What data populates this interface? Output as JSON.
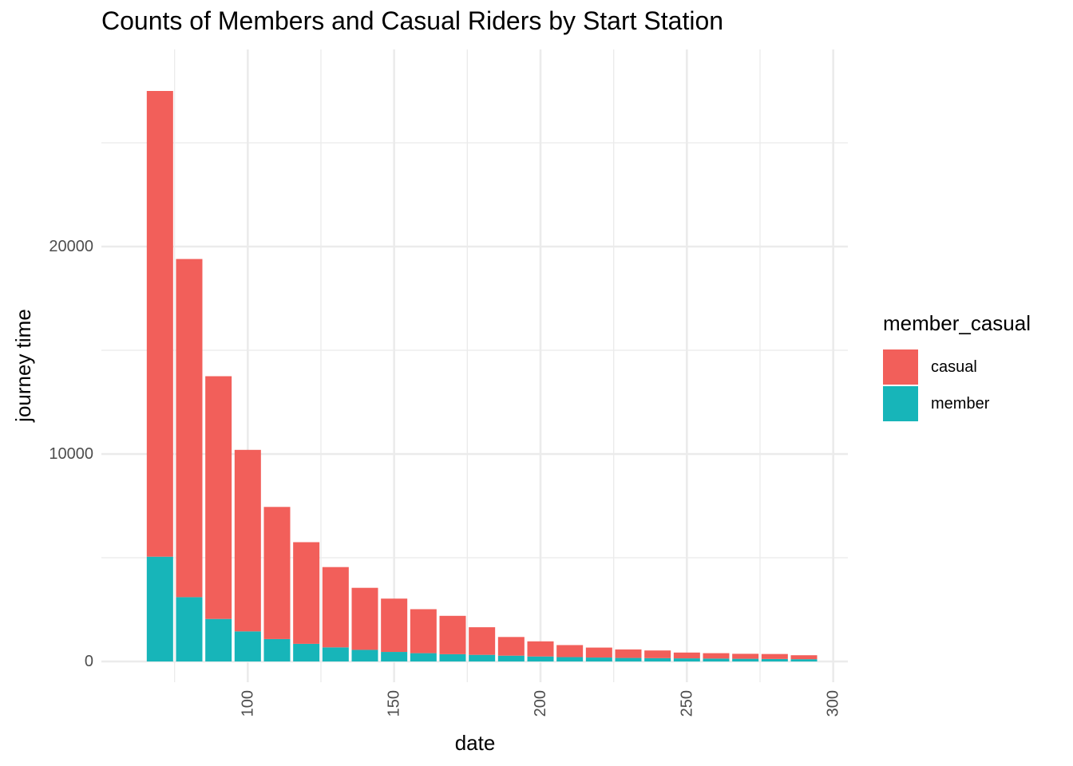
{
  "chart_data": {
    "type": "bar",
    "stacked": true,
    "title": "Counts of Members and Casual Riders by Start Station",
    "xlabel": "date",
    "ylabel": "journey time",
    "x": [
      70,
      80,
      90,
      100,
      110,
      120,
      130,
      140,
      150,
      160,
      170,
      180,
      190,
      200,
      210,
      220,
      230,
      240,
      250,
      260,
      270,
      280,
      290
    ],
    "series": [
      {
        "name": "member",
        "color": "#17B5B9",
        "values": [
          5050,
          3100,
          2050,
          1450,
          1080,
          850,
          680,
          560,
          460,
          400,
          350,
          320,
          280,
          240,
          210,
          190,
          170,
          160,
          150,
          140,
          130,
          120,
          110
        ]
      },
      {
        "name": "casual",
        "color": "#F25F5A",
        "values": [
          22450,
          16300,
          11700,
          8750,
          6370,
          4900,
          3870,
          2990,
          2570,
          2120,
          1850,
          1330,
          900,
          730,
          580,
          480,
          410,
          370,
          280,
          260,
          240,
          240,
          190
        ]
      }
    ],
    "xlim": [
      50,
      305
    ],
    "ylim": [
      -1000,
      29500
    ],
    "x_ticks": [
      100,
      150,
      200,
      250,
      300
    ],
    "y_ticks": [
      0,
      10000,
      20000
    ],
    "x_tick_labels": [
      "100",
      "150",
      "200",
      "250",
      "300"
    ],
    "y_tick_labels": [
      "0",
      "10000",
      "20000"
    ],
    "grid": true,
    "legend": {
      "title": "member_casual",
      "position": "right",
      "items": [
        {
          "label": "casual",
          "color": "#F25F5A"
        },
        {
          "label": "member",
          "color": "#17B5B9"
        }
      ]
    }
  }
}
